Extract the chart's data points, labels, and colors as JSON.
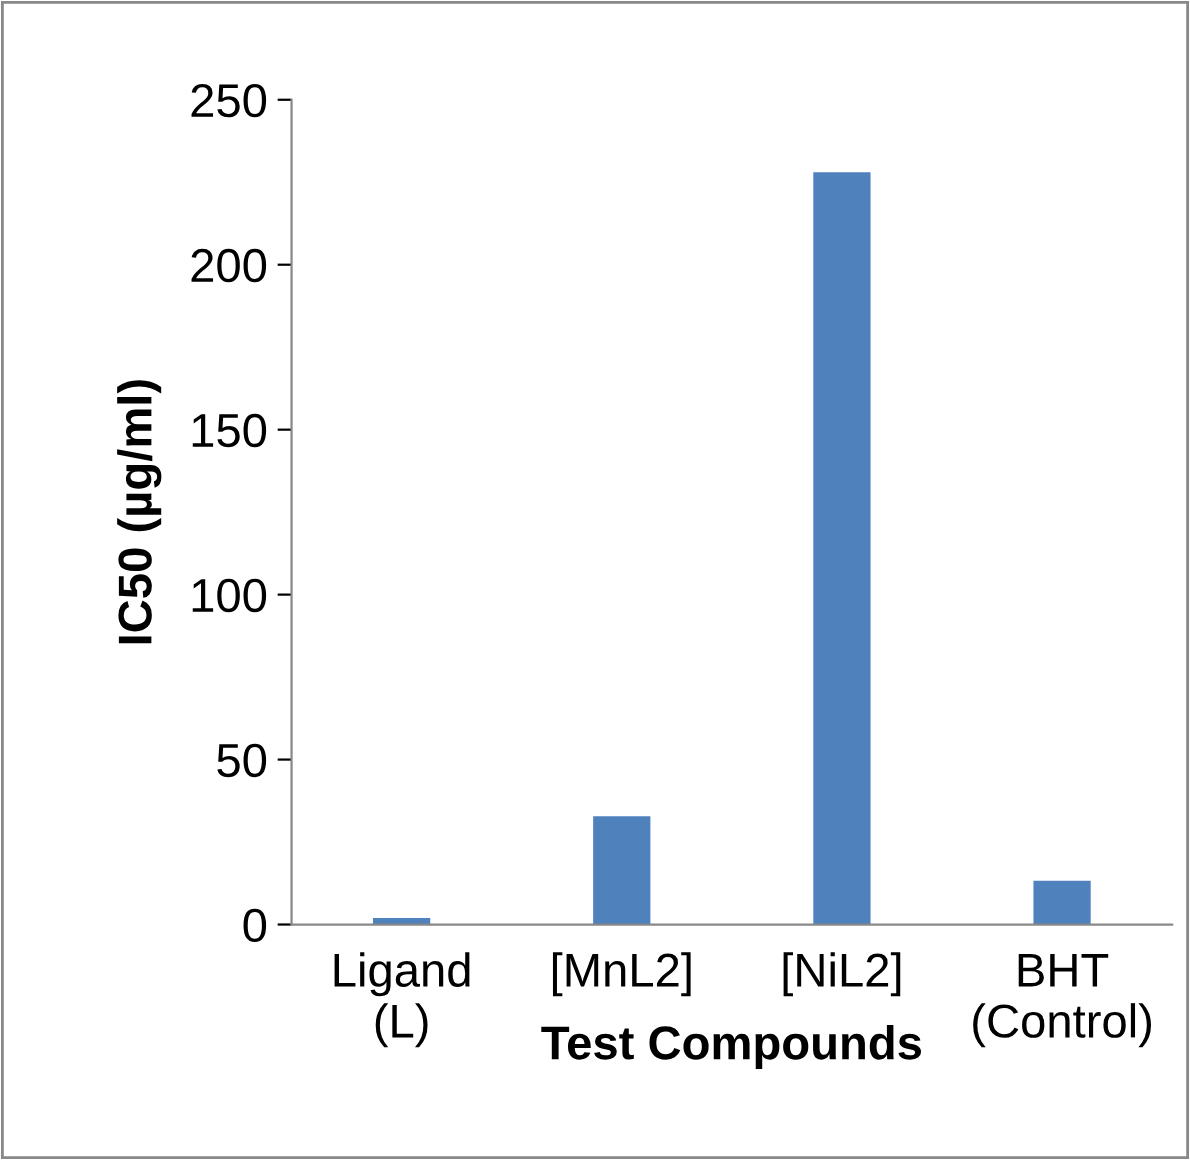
{
  "chart_data": {
    "type": "bar",
    "xlabel": "Test Compounds",
    "ylabel": "IC50 (µg/ml)",
    "categories": [
      "Ligand\n(L)",
      "[MnL2]",
      "[NiL2]",
      "BHT\n(Control)"
    ],
    "values": [
      2,
      32.8,
      228,
      13.3
    ],
    "color": "#4f81bd",
    "ylim": [
      0,
      250
    ],
    "yticks": [
      0,
      50,
      100,
      150,
      200,
      250
    ],
    "grid": false,
    "legend": false
  }
}
